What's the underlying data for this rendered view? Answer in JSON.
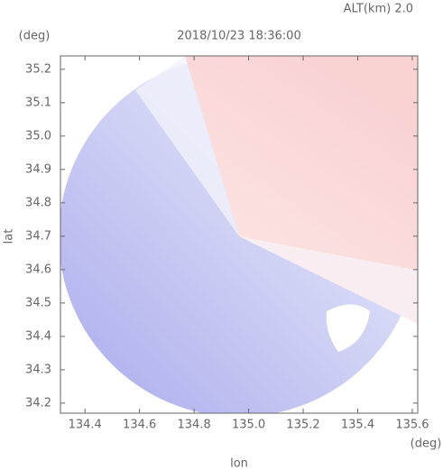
{
  "chart_data": {
    "type": "map",
    "title": "2018/10/23 18:36:00",
    "subtitle": "ALT(km) 2.0",
    "x_label": "lon",
    "y_label": "lat",
    "x_unit": "(deg)",
    "y_unit": "(deg)",
    "xlim": [
      134.31,
      135.62
    ],
    "ylim": [
      34.17,
      35.24
    ],
    "xticks": [
      134.4,
      134.6,
      134.8,
      {
        "value": 135,
        "label": "135.0"
      },
      135.2,
      135.4,
      135.6
    ],
    "yticks": [
      34.2,
      34.3,
      34.4,
      34.5,
      34.6,
      34.7,
      34.8,
      34.9,
      {
        "value": 35,
        "label": "35.0"
      },
      35.1,
      35.2
    ]
  }
}
